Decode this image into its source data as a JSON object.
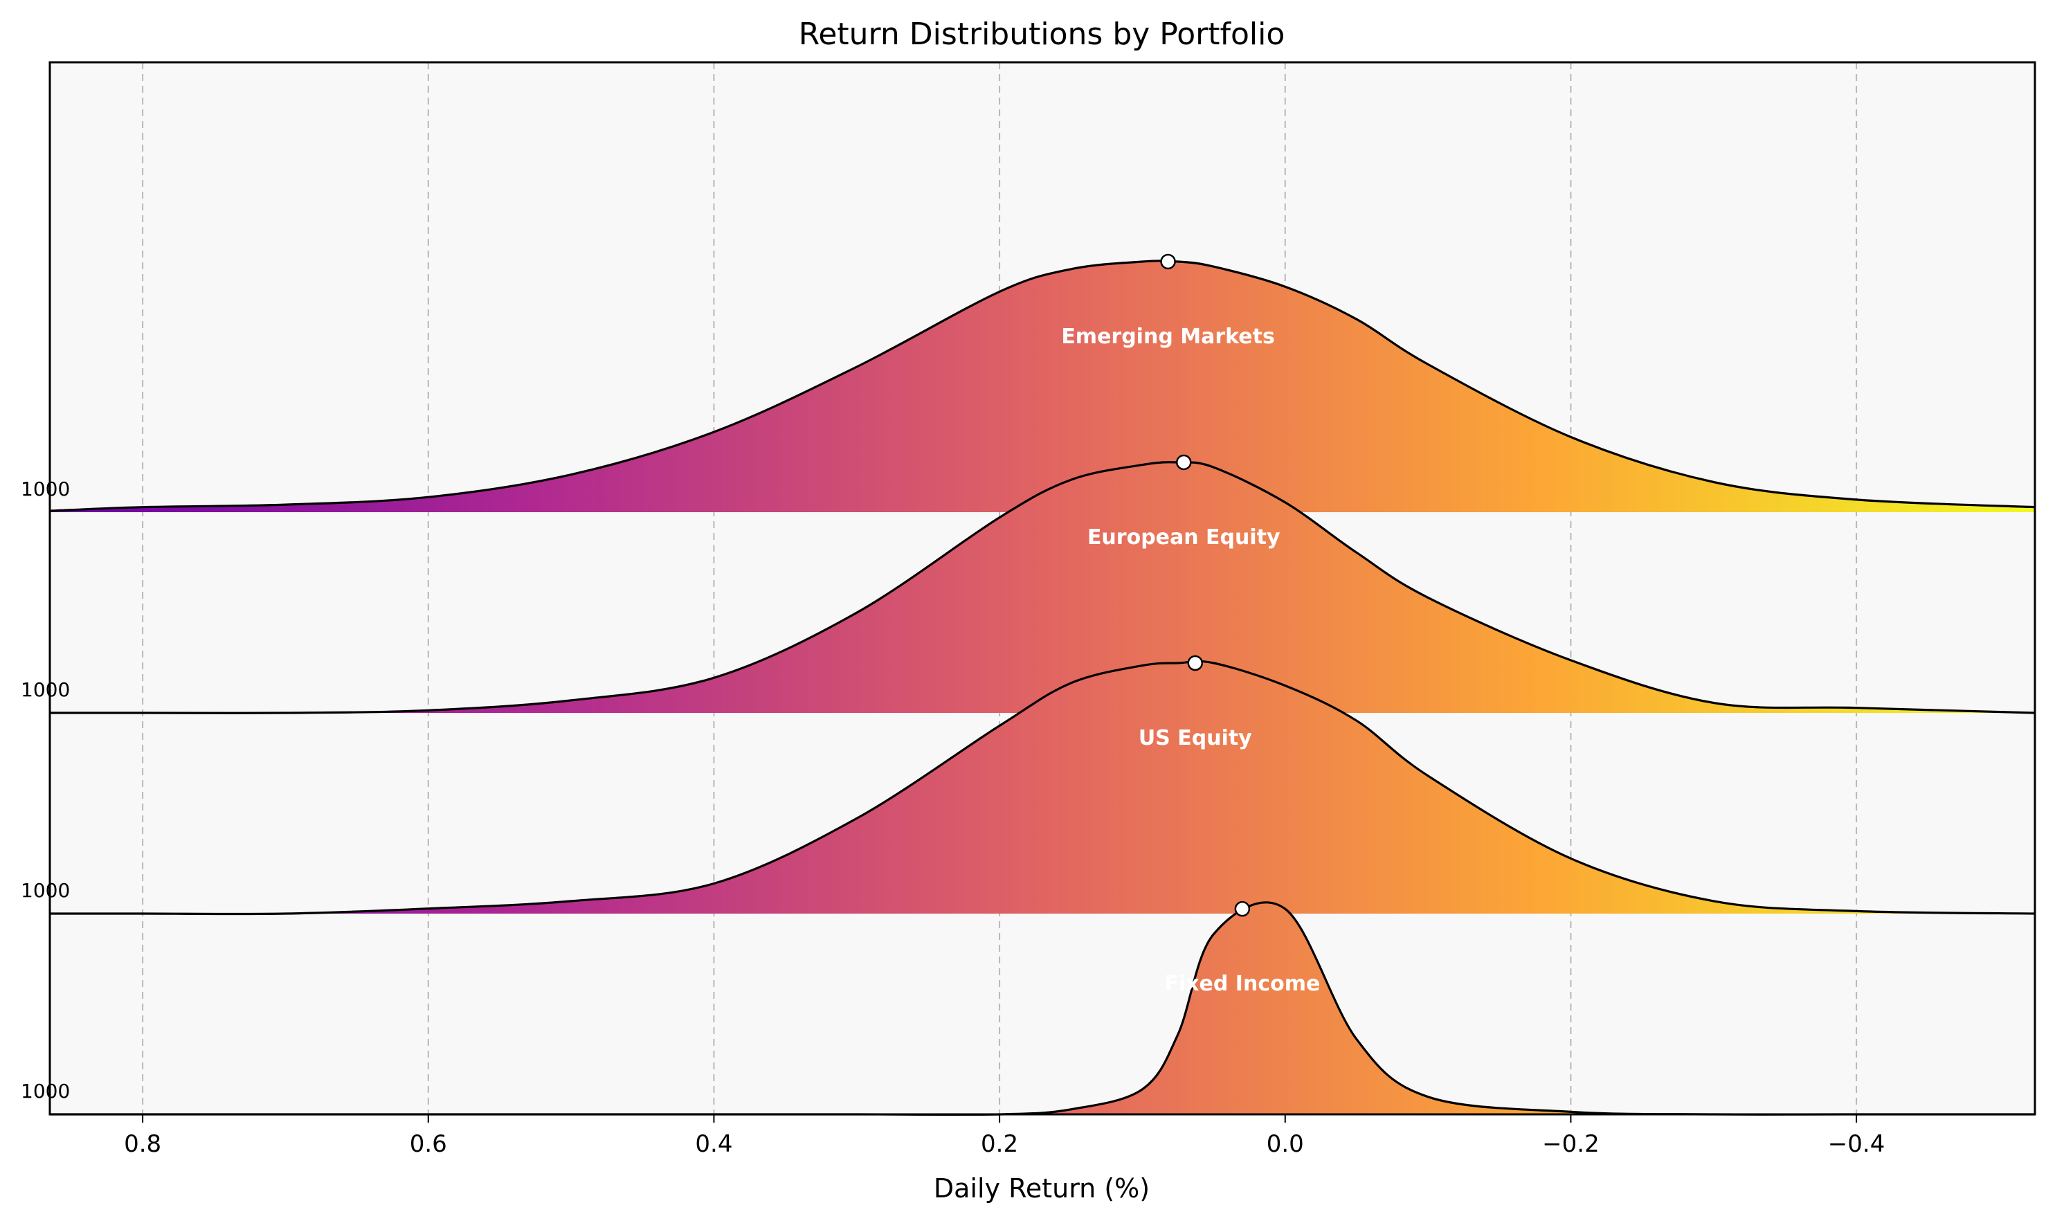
{
  "chart_data": {
    "type": "area",
    "title": "Return Distributions by Portfolio",
    "xlabel": "Daily Return (%)",
    "ylabel": "",
    "x_axis_inverted": true,
    "xlim": [
      0.865,
      -0.525
    ],
    "xticks": [
      0.8,
      0.6,
      0.4,
      0.2,
      0.0,
      -0.2,
      -0.4
    ],
    "xtick_labels": [
      "0.8",
      "0.6",
      "0.4",
      "0.2",
      "0.0",
      "−0.2",
      "−0.4"
    ],
    "grid": "vertical dashed",
    "colormap": [
      "#6a00a8",
      "#b12a90",
      "#e16462",
      "#fca636",
      "#f0f921"
    ],
    "x": [
      0.865,
      0.8,
      0.7,
      0.6,
      0.5,
      0.4,
      0.3,
      0.2,
      0.15,
      0.1,
      0.075,
      0.05,
      0.0,
      -0.05,
      -0.1,
      -0.2,
      -0.3,
      -0.4,
      -0.525
    ],
    "series": [
      {
        "name": "Emerging Markets",
        "count_label": "1000",
        "peak_x": 0.082,
        "density": [
          0.005,
          0.02,
          0.03,
          0.06,
          0.15,
          0.32,
          0.58,
          0.88,
          0.97,
          1.0,
          1.0,
          0.98,
          0.9,
          0.77,
          0.59,
          0.3,
          0.12,
          0.05,
          0.02
        ]
      },
      {
        "name": "European Equity",
        "count_label": "1000",
        "peak_x": 0.071,
        "density": [
          0.0,
          0.0,
          0.0,
          0.01,
          0.05,
          0.14,
          0.4,
          0.78,
          0.93,
          0.99,
          1.0,
          0.98,
          0.84,
          0.64,
          0.46,
          0.21,
          0.04,
          0.02,
          0.0
        ]
      },
      {
        "name": "US Equity",
        "count_label": "1000",
        "peak_x": 0.063,
        "density": [
          0.0,
          0.0,
          0.0,
          0.02,
          0.05,
          0.12,
          0.38,
          0.75,
          0.92,
          0.99,
          1.0,
          1.0,
          0.91,
          0.77,
          0.55,
          0.22,
          0.05,
          0.01,
          0.0
        ]
      },
      {
        "name": "Fixed Income",
        "count_label": "1000",
        "peak_x": 0.03,
        "density": [
          0.0,
          0.0,
          0.0,
          0.0,
          0.0,
          0.0,
          0.0,
          0.0,
          0.02,
          0.1,
          0.32,
          0.72,
          0.82,
          0.3,
          0.07,
          0.01,
          0.0,
          0.0,
          0.0
        ]
      }
    ]
  }
}
